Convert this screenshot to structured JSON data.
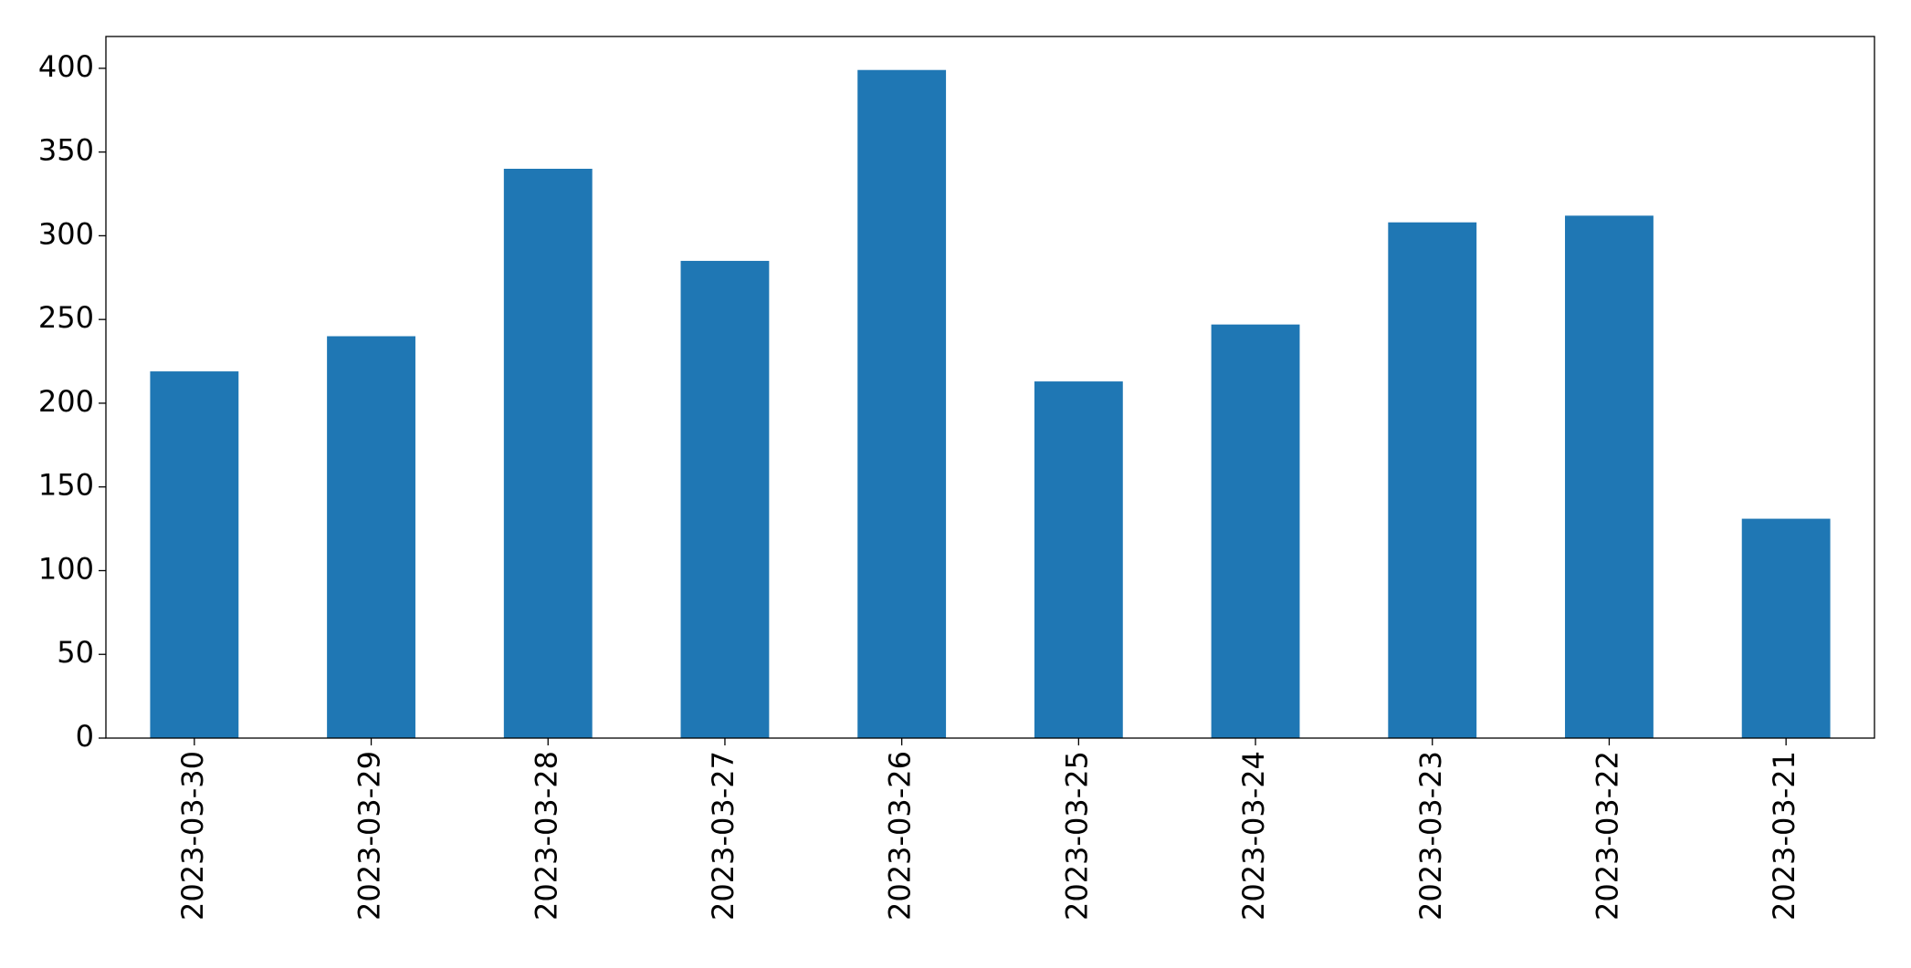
{
  "chart_data": {
    "type": "bar",
    "categories": [
      "2023-03-30",
      "2023-03-29",
      "2023-03-28",
      "2023-03-27",
      "2023-03-26",
      "2023-03-25",
      "2023-03-24",
      "2023-03-23",
      "2023-03-22",
      "2023-03-21"
    ],
    "values": [
      219,
      240,
      340,
      285,
      399,
      213,
      247,
      308,
      312,
      131
    ],
    "color": "#1f77b4",
    "ylim": [
      0,
      419
    ],
    "yticks": [
      0,
      50,
      100,
      150,
      200,
      250,
      300,
      350,
      400
    ],
    "grid": false
  }
}
